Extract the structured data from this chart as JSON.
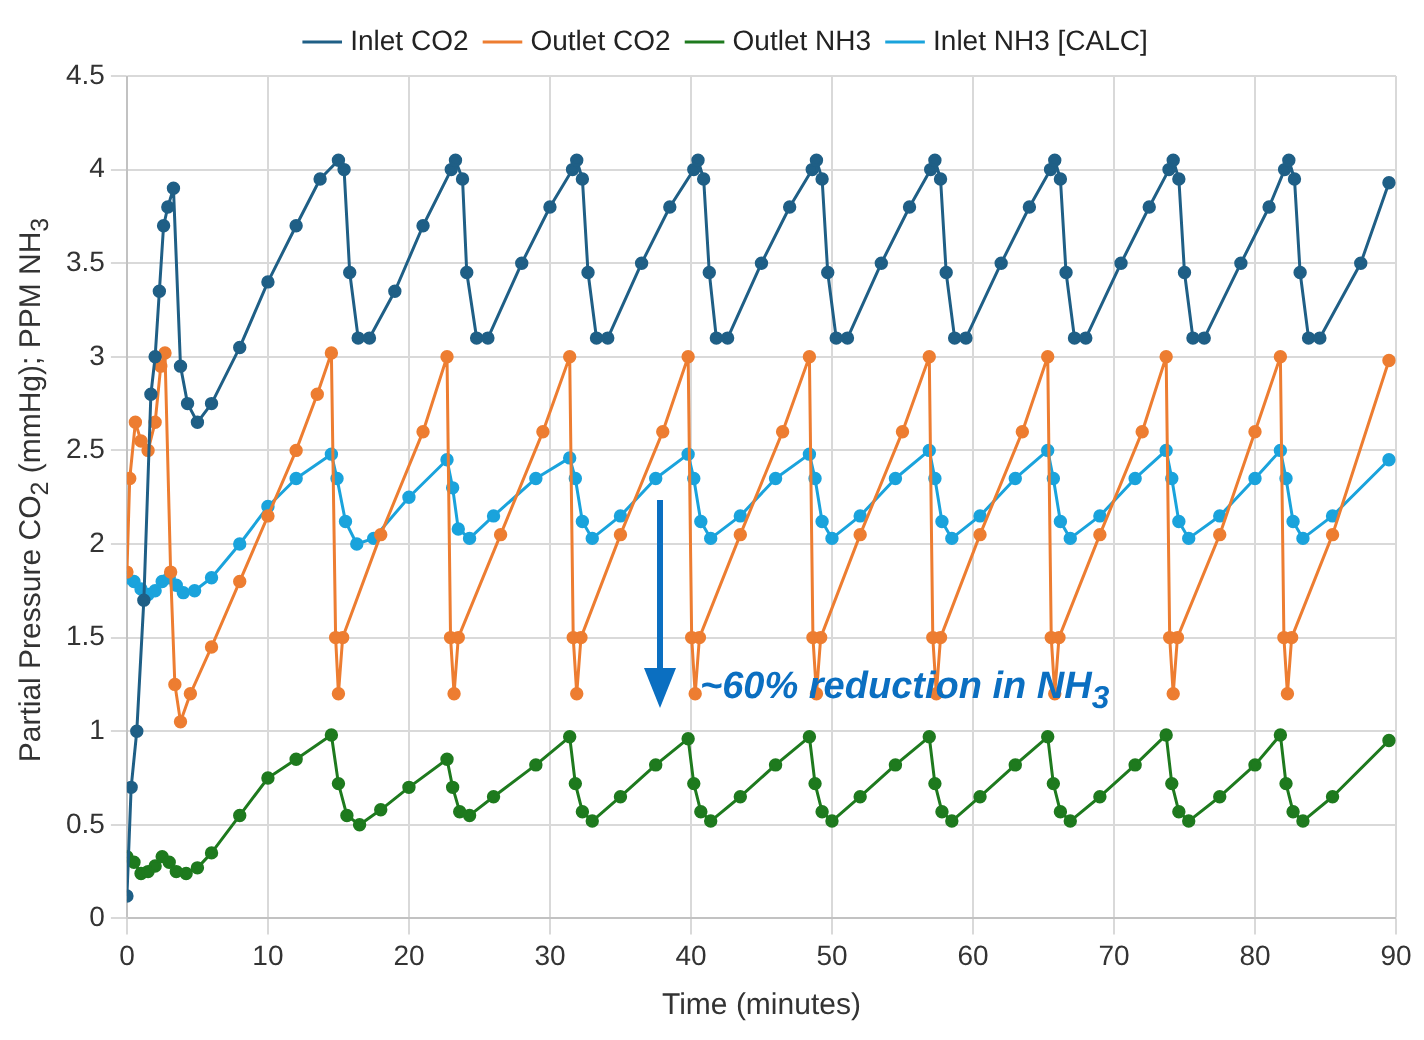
{
  "chart_data": {
    "type": "line",
    "xlabel": "Time (minutes)",
    "ylabel": "Partial Pressure CO$_{2}$ (mmHg); PPM NH$_{3}$",
    "xlim": [
      0,
      90
    ],
    "xticks": [
      0,
      10,
      20,
      30,
      40,
      50,
      60,
      70,
      80,
      90
    ],
    "ylim": [
      0,
      4.5
    ],
    "yticks": [
      0,
      0.5,
      1,
      1.5,
      2,
      2.5,
      3,
      3.5,
      4,
      4.5
    ],
    "grid": true,
    "legend": "top",
    "marker": "circle",
    "line_style": "solid",
    "annotations": [
      "~60% reduction in NH$_{3}$"
    ],
    "series": [
      {
        "name": "Inlet CO2",
        "color": "#1f5f86",
        "x": [
          0,
          0.3,
          0.7,
          1.2,
          1.7,
          2,
          2.3,
          2.6,
          2.9,
          3.3,
          3.8,
          4.3,
          5,
          6,
          8,
          10,
          12,
          13.7,
          15,
          15.4,
          15.8,
          16.4,
          17.2,
          19,
          21,
          23,
          23.3,
          23.8,
          24.1,
          24.8,
          25.6,
          28,
          30,
          31.6,
          31.9,
          32.3,
          32.7,
          33.3,
          34.1,
          36.5,
          38.5,
          40.2,
          40.5,
          40.9,
          41.3,
          41.8,
          42.6,
          45,
          47,
          48.6,
          48.9,
          49.3,
          49.7,
          50.3,
          51.1,
          53.5,
          55.5,
          57,
          57.3,
          57.7,
          58.1,
          58.7,
          59.5,
          62,
          64,
          65.5,
          65.8,
          66.2,
          66.6,
          67.2,
          68,
          70.5,
          72.5,
          73.9,
          74.2,
          74.6,
          75,
          75.6,
          76.4,
          79,
          81,
          82.1,
          82.4,
          82.8,
          83.2,
          83.8,
          84.6,
          87.5,
          89.5
        ],
        "values": [
          0.12,
          0.7,
          1.0,
          1.7,
          2.8,
          3.0,
          3.35,
          3.7,
          3.8,
          3.9,
          2.95,
          2.75,
          2.65,
          2.75,
          3.05,
          3.4,
          3.7,
          3.95,
          4.05,
          4.0,
          3.45,
          3.1,
          3.1,
          3.35,
          3.7,
          4.0,
          4.05,
          3.95,
          3.45,
          3.1,
          3.1,
          3.5,
          3.8,
          4.0,
          4.05,
          3.95,
          3.45,
          3.1,
          3.1,
          3.5,
          3.8,
          4.0,
          4.05,
          3.95,
          3.45,
          3.1,
          3.1,
          3.5,
          3.8,
          4.0,
          4.05,
          3.95,
          3.45,
          3.1,
          3.1,
          3.5,
          3.8,
          4.0,
          4.05,
          3.95,
          3.45,
          3.1,
          3.1,
          3.5,
          3.8,
          4.0,
          4.05,
          3.95,
          3.45,
          3.1,
          3.1,
          3.5,
          3.8,
          4.0,
          4.05,
          3.95,
          3.45,
          3.1,
          3.1,
          3.5,
          3.8,
          4.0,
          4.05,
          3.95,
          3.45,
          3.1,
          3.1,
          3.5,
          3.93
        ]
      },
      {
        "name": "Outlet CO2",
        "color": "#ed7d31",
        "x": [
          0,
          0.2,
          0.6,
          1,
          1.5,
          2,
          2.4,
          2.7,
          3.1,
          3.4,
          3.8,
          4.5,
          6,
          8,
          10,
          12,
          13.5,
          14.5,
          14.8,
          15,
          15.3,
          18,
          21,
          22.7,
          22.95,
          23.2,
          23.5,
          26.5,
          29.5,
          31.4,
          31.65,
          31.9,
          32.2,
          35,
          38,
          39.8,
          40.05,
          40.3,
          40.6,
          43.5,
          46.5,
          48.4,
          48.65,
          48.9,
          49.2,
          52,
          55,
          56.9,
          57.15,
          57.4,
          57.7,
          60.5,
          63.5,
          65.3,
          65.55,
          65.8,
          66.1,
          69,
          72,
          73.7,
          73.95,
          74.2,
          74.5,
          77.5,
          80,
          81.8,
          82.05,
          82.3,
          82.6,
          85.5,
          89.5
        ],
        "values": [
          1.85,
          2.35,
          2.65,
          2.55,
          2.5,
          2.65,
          2.95,
          3.02,
          1.85,
          1.25,
          1.05,
          1.2,
          1.45,
          1.8,
          2.15,
          2.5,
          2.8,
          3.02,
          1.5,
          1.2,
          1.5,
          2.05,
          2.6,
          3.0,
          1.5,
          1.2,
          1.5,
          2.05,
          2.6,
          3.0,
          1.5,
          1.2,
          1.5,
          2.05,
          2.6,
          3.0,
          1.5,
          1.2,
          1.5,
          2.05,
          2.6,
          3.0,
          1.5,
          1.2,
          1.5,
          2.05,
          2.6,
          3.0,
          1.5,
          1.2,
          1.5,
          2.05,
          2.6,
          3.0,
          1.5,
          1.2,
          1.5,
          2.05,
          2.6,
          3.0,
          1.5,
          1.2,
          1.5,
          2.05,
          2.6,
          3.0,
          1.5,
          1.2,
          1.5,
          2.05,
          2.98
        ]
      },
      {
        "name": "Outlet NH3",
        "color": "#1e7a1e",
        "x": [
          0,
          0.5,
          1,
          1.5,
          2,
          2.5,
          3,
          3.5,
          4.2,
          5,
          6,
          8,
          10,
          12,
          14.5,
          15,
          15.6,
          16.5,
          18,
          20,
          22.7,
          23.1,
          23.6,
          24.3,
          26,
          29,
          31.4,
          31.8,
          32.3,
          33,
          35,
          37.5,
          39.8,
          40.2,
          40.7,
          41.4,
          43.5,
          46,
          48.4,
          48.8,
          49.3,
          50,
          52,
          54.5,
          56.9,
          57.3,
          57.8,
          58.5,
          60.5,
          63,
          65.3,
          65.7,
          66.2,
          66.9,
          69,
          71.5,
          73.7,
          74.1,
          74.6,
          75.3,
          77.5,
          80,
          81.8,
          82.2,
          82.7,
          83.4,
          85.5,
          89.5
        ],
        "values": [
          0.33,
          0.3,
          0.24,
          0.25,
          0.28,
          0.33,
          0.3,
          0.25,
          0.24,
          0.27,
          0.35,
          0.55,
          0.75,
          0.85,
          0.98,
          0.72,
          0.55,
          0.5,
          0.58,
          0.7,
          0.85,
          0.7,
          0.57,
          0.55,
          0.65,
          0.82,
          0.97,
          0.72,
          0.57,
          0.52,
          0.65,
          0.82,
          0.96,
          0.72,
          0.57,
          0.52,
          0.65,
          0.82,
          0.97,
          0.72,
          0.57,
          0.52,
          0.65,
          0.82,
          0.97,
          0.72,
          0.57,
          0.52,
          0.65,
          0.82,
          0.97,
          0.72,
          0.57,
          0.52,
          0.65,
          0.82,
          0.98,
          0.72,
          0.57,
          0.52,
          0.65,
          0.82,
          0.98,
          0.72,
          0.57,
          0.52,
          0.65,
          0.95
        ]
      },
      {
        "name": "Inlet NH3 [CALC]",
        "color": "#1aa3dc",
        "x": [
          0,
          0.5,
          1,
          1.5,
          2,
          2.5,
          3,
          3.5,
          4,
          4.8,
          6,
          8,
          10,
          12,
          14.5,
          14.9,
          15.5,
          16.3,
          17.5,
          20,
          22.7,
          23.1,
          23.5,
          24.3,
          26,
          29,
          31.4,
          31.8,
          32.3,
          33,
          35,
          37.5,
          39.8,
          40.2,
          40.7,
          41.4,
          43.5,
          46,
          48.4,
          48.8,
          49.3,
          50,
          52,
          54.5,
          56.9,
          57.3,
          57.8,
          58.5,
          60.5,
          63,
          65.3,
          65.7,
          66.2,
          66.9,
          69,
          71.5,
          73.7,
          74.1,
          74.6,
          75.3,
          77.5,
          80,
          81.8,
          82.2,
          82.7,
          83.4,
          85.5,
          89.5
        ],
        "values": [
          1.82,
          1.8,
          1.76,
          1.73,
          1.75,
          1.8,
          1.82,
          1.78,
          1.74,
          1.75,
          1.82,
          2.0,
          2.2,
          2.35,
          2.48,
          2.35,
          2.12,
          2.0,
          2.03,
          2.25,
          2.45,
          2.3,
          2.08,
          2.03,
          2.15,
          2.35,
          2.46,
          2.35,
          2.12,
          2.03,
          2.15,
          2.35,
          2.48,
          2.35,
          2.12,
          2.03,
          2.15,
          2.35,
          2.48,
          2.35,
          2.12,
          2.03,
          2.15,
          2.35,
          2.5,
          2.35,
          2.12,
          2.03,
          2.15,
          2.35,
          2.5,
          2.35,
          2.12,
          2.03,
          2.15,
          2.35,
          2.5,
          2.35,
          2.12,
          2.03,
          2.15,
          2.35,
          2.5,
          2.35,
          2.12,
          2.03,
          2.15,
          2.45
        ]
      }
    ]
  }
}
